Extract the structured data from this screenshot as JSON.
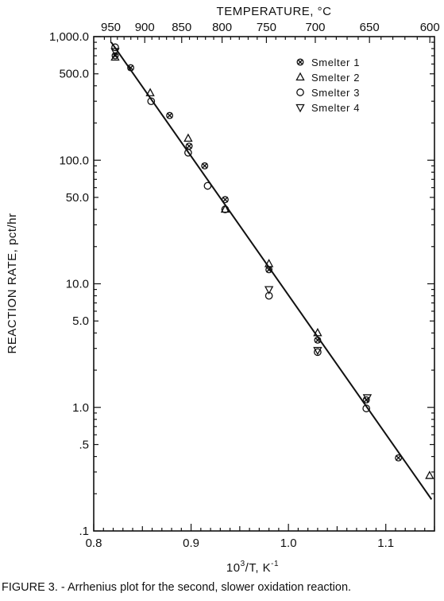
{
  "chart_data": {
    "type": "scatter",
    "title": "",
    "xlabel_main": "10",
    "xlabel_sup": "3",
    "xlabel_mid": "/T, K",
    "xlabel_sup2": "-1",
    "ylabel": "REACTION RATE, pct/hr",
    "top_axis_label": "TEMPERATURE, °C",
    "y_scale": "log",
    "xlim": [
      0.8,
      1.15
    ],
    "ylim": [
      0.1,
      1000
    ],
    "x_ticks": [
      0.8,
      0.9,
      1.0,
      1.1
    ],
    "x_tick_labels": [
      "0.8",
      "0.9",
      "1.0",
      "1.1"
    ],
    "y_ticks": [
      0.1,
      0.5,
      1.0,
      5.0,
      10.0,
      50.0,
      100.0,
      500.0,
      1000.0
    ],
    "y_tick_labels": [
      ".1",
      ".5",
      "1.0",
      "5.0",
      "10.0",
      "50.0",
      "100.0",
      "500.0",
      "1,000.0"
    ],
    "top_ticks_celsius": [
      950,
      900,
      850,
      800,
      750,
      700,
      650,
      600
    ],
    "top_tick_labels": [
      "950",
      "900",
      "850",
      "800",
      "750",
      "700",
      "650",
      "600"
    ],
    "legend_position": "top-right",
    "fit_line": {
      "x": [
        0.818,
        1.147
      ],
      "y": [
        900,
        0.18
      ]
    },
    "series": [
      {
        "name": "Smelter  1",
        "marker": "x-circle",
        "x": [
          0.822,
          0.838,
          0.878,
          0.898,
          0.914,
          0.935,
          0.98,
          1.03,
          1.08,
          1.113
        ],
        "y": [
          700,
          560,
          230,
          130,
          90,
          48,
          13,
          3.5,
          1.15,
          0.39
        ]
      },
      {
        "name": "Smelter  2",
        "marker": "triangle-up",
        "x": [
          0.822,
          0.858,
          0.897,
          0.935,
          0.98,
          1.03,
          1.145
        ],
        "y": [
          680,
          350,
          150,
          40,
          14.5,
          4.0,
          0.28
        ]
      },
      {
        "name": "Smelter  3",
        "marker": "circle",
        "x": [
          0.822,
          0.859,
          0.897,
          0.917,
          0.935,
          0.98,
          1.03,
          1.08
        ],
        "y": [
          820,
          300,
          115,
          62,
          40,
          8.0,
          2.8,
          0.98
        ]
      },
      {
        "name": "Smelter  4",
        "marker": "triangle-down",
        "x": [
          0.822,
          0.98,
          1.03,
          1.081
        ],
        "y": [
          760,
          9.0,
          2.9,
          1.2
        ]
      }
    ]
  },
  "caption": "FIGURE 3. - Arrhenius plot for the second, slower oxidation reaction."
}
